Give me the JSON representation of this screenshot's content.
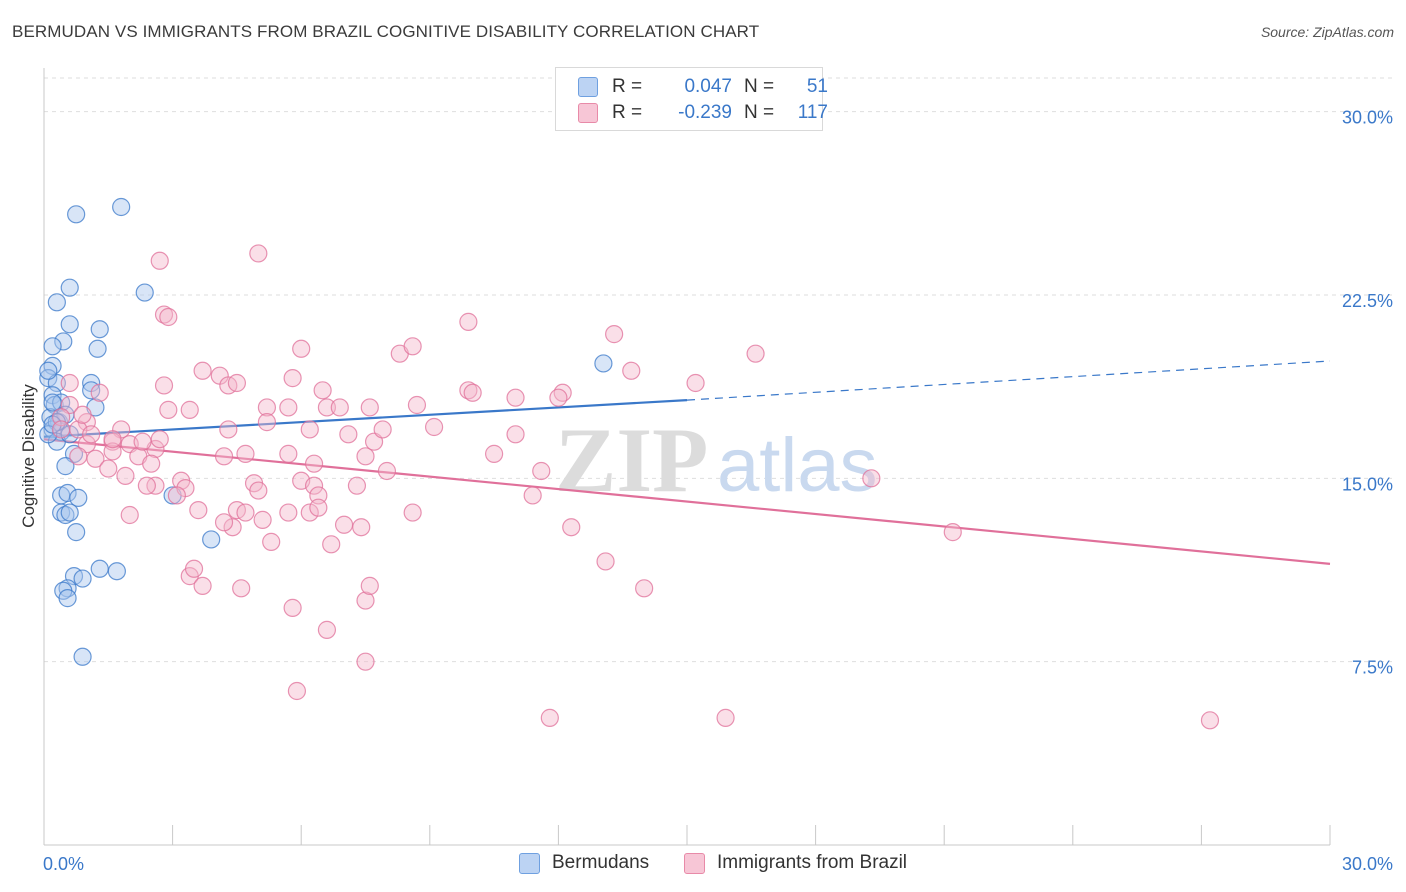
{
  "title": "BERMUDAN VS IMMIGRANTS FROM BRAZIL COGNITIVE DISABILITY CORRELATION CHART",
  "source": "Source: ZipAtlas.com",
  "watermark": {
    "zip": "ZIP",
    "atlas": "atlas"
  },
  "legend": [
    {
      "r_label": "R =",
      "r_value": "0.047",
      "n_label": "N =",
      "n_value": "51",
      "color": "#6fa0e0",
      "fill": "#bcd3f3"
    },
    {
      "r_label": "R =",
      "r_value": "-0.239",
      "n_label": "N =",
      "n_value": "117",
      "color": "#e88aa8",
      "fill": "#f7c6d6"
    }
  ],
  "bottom_legend": {
    "bermudans": "Bermudans",
    "brazil": "Immigrants from Brazil"
  },
  "chart_data": {
    "type": "scatter",
    "title": "BERMUDAN VS IMMIGRANTS FROM BRAZIL COGNITIVE DISABILITY CORRELATION CHART",
    "xlabel": "",
    "ylabel": "Cognitive Disability",
    "xlim": [
      0,
      30
    ],
    "ylim": [
      0,
      31.5
    ],
    "x_tick_labels": [
      "0.0%",
      "30.0%"
    ],
    "y_ticks": [
      7.5,
      15.0,
      22.5,
      30.0
    ],
    "y_tick_labels": [
      "7.5%",
      "15.0%",
      "22.5%",
      "30.0%"
    ],
    "grid": "horizontal dashed",
    "legend_position": "top-center",
    "series": [
      {
        "name": "Bermudans",
        "color": "#3a78c9",
        "fill": "#a9c6ee",
        "r": 0.047,
        "n": 51,
        "trend": {
          "x_start": 0,
          "y_start": 16.7,
          "x_end": 15,
          "y_end": 18.2,
          "x_dashed_end": 30,
          "y_dashed_end": 19.8
        },
        "points": [
          [
            0.2,
            19.6
          ],
          [
            0.1,
            19.1
          ],
          [
            0.3,
            18.9
          ],
          [
            0.2,
            18.4
          ],
          [
            0.25,
            18.0
          ],
          [
            0.4,
            18.1
          ],
          [
            0.15,
            17.5
          ],
          [
            0.35,
            17.3
          ],
          [
            0.2,
            17.0
          ],
          [
            0.4,
            16.9
          ],
          [
            0.3,
            16.5
          ],
          [
            0.5,
            17.6
          ],
          [
            0.6,
            16.8
          ],
          [
            0.7,
            16.0
          ],
          [
            0.5,
            15.5
          ],
          [
            0.4,
            14.3
          ],
          [
            0.55,
            14.4
          ],
          [
            0.8,
            14.2
          ],
          [
            0.4,
            13.6
          ],
          [
            0.5,
            13.5
          ],
          [
            0.6,
            13.6
          ],
          [
            0.75,
            12.8
          ],
          [
            0.7,
            11.0
          ],
          [
            0.55,
            10.5
          ],
          [
            0.45,
            10.4
          ],
          [
            0.55,
            10.1
          ],
          [
            0.9,
            10.9
          ],
          [
            1.3,
            11.3
          ],
          [
            1.7,
            11.2
          ],
          [
            0.9,
            7.7
          ],
          [
            0.75,
            25.8
          ],
          [
            1.8,
            26.1
          ],
          [
            0.6,
            22.8
          ],
          [
            0.3,
            22.2
          ],
          [
            2.35,
            22.6
          ],
          [
            0.6,
            21.3
          ],
          [
            1.3,
            21.1
          ],
          [
            0.45,
            20.6
          ],
          [
            0.2,
            20.4
          ],
          [
            1.25,
            20.3
          ],
          [
            1.1,
            18.9
          ],
          [
            1.1,
            18.6
          ],
          [
            1.2,
            17.9
          ],
          [
            0.1,
            19.4
          ],
          [
            0.3,
            17.3
          ],
          [
            0.1,
            16.8
          ],
          [
            0.2,
            17.2
          ],
          [
            3.0,
            14.3
          ],
          [
            3.9,
            12.5
          ],
          [
            13.05,
            19.7
          ],
          [
            0.2,
            18.1
          ]
        ]
      },
      {
        "name": "Immigrants from Brazil",
        "color": "#e0709a",
        "fill": "#f5b9cd",
        "r": -0.239,
        "n": 117,
        "trend": {
          "x_start": 0,
          "y_start": 16.6,
          "x_end": 30,
          "y_end": 11.5
        },
        "points": [
          [
            0.6,
            18.9
          ],
          [
            1.3,
            18.5
          ],
          [
            0.6,
            18.0
          ],
          [
            0.4,
            17.5
          ],
          [
            1.0,
            17.3
          ],
          [
            0.8,
            17.0
          ],
          [
            1.8,
            17.0
          ],
          [
            1.0,
            16.4
          ],
          [
            1.6,
            16.5
          ],
          [
            2.0,
            16.4
          ],
          [
            0.8,
            15.9
          ],
          [
            1.2,
            15.8
          ],
          [
            1.5,
            15.4
          ],
          [
            2.6,
            16.2
          ],
          [
            2.2,
            15.9
          ],
          [
            2.5,
            15.6
          ],
          [
            1.9,
            15.1
          ],
          [
            2.6,
            14.7
          ],
          [
            2.4,
            14.7
          ],
          [
            3.2,
            14.9
          ],
          [
            3.3,
            14.6
          ],
          [
            3.1,
            14.3
          ],
          [
            2.0,
            13.5
          ],
          [
            3.6,
            13.7
          ],
          [
            4.5,
            13.7
          ],
          [
            4.4,
            13.0
          ],
          [
            4.2,
            13.2
          ],
          [
            3.4,
            11.0
          ],
          [
            3.5,
            11.3
          ],
          [
            3.7,
            10.6
          ],
          [
            4.6,
            10.5
          ],
          [
            2.8,
            21.7
          ],
          [
            2.7,
            23.9
          ],
          [
            2.9,
            21.6
          ],
          [
            5.0,
            24.2
          ],
          [
            3.7,
            19.4
          ],
          [
            4.1,
            19.2
          ],
          [
            4.3,
            18.8
          ],
          [
            2.8,
            18.8
          ],
          [
            4.5,
            18.9
          ],
          [
            2.9,
            17.8
          ],
          [
            3.4,
            17.8
          ],
          [
            4.3,
            17.0
          ],
          [
            5.2,
            17.9
          ],
          [
            5.8,
            19.1
          ],
          [
            5.7,
            17.9
          ],
          [
            5.2,
            17.3
          ],
          [
            4.7,
            16.0
          ],
          [
            4.2,
            15.9
          ],
          [
            5.7,
            16.0
          ],
          [
            4.9,
            14.8
          ],
          [
            5.0,
            14.5
          ],
          [
            4.7,
            13.6
          ],
          [
            5.1,
            13.3
          ],
          [
            5.3,
            12.4
          ],
          [
            5.7,
            13.6
          ],
          [
            6.0,
            14.9
          ],
          [
            6.3,
            14.7
          ],
          [
            6.2,
            13.6
          ],
          [
            6.0,
            20.3
          ],
          [
            6.5,
            18.6
          ],
          [
            6.6,
            17.9
          ],
          [
            6.2,
            17.0
          ],
          [
            6.3,
            15.6
          ],
          [
            6.4,
            14.3
          ],
          [
            6.9,
            17.9
          ],
          [
            7.1,
            16.8
          ],
          [
            6.7,
            12.3
          ],
          [
            6.4,
            13.8
          ],
          [
            7.0,
            13.1
          ],
          [
            7.3,
            14.7
          ],
          [
            7.4,
            13.0
          ],
          [
            7.5,
            15.9
          ],
          [
            7.7,
            16.5
          ],
          [
            7.6,
            17.9
          ],
          [
            7.9,
            17.0
          ],
          [
            8.0,
            15.3
          ],
          [
            8.3,
            20.1
          ],
          [
            8.6,
            20.4
          ],
          [
            8.7,
            18.0
          ],
          [
            9.1,
            17.1
          ],
          [
            8.6,
            13.6
          ],
          [
            9.9,
            21.4
          ],
          [
            9.9,
            18.6
          ],
          [
            10.0,
            18.5
          ],
          [
            10.5,
            16.0
          ],
          [
            11.0,
            18.3
          ],
          [
            11.0,
            16.8
          ],
          [
            11.6,
            15.3
          ],
          [
            11.4,
            14.3
          ],
          [
            12.1,
            18.5
          ],
          [
            12.0,
            18.3
          ],
          [
            12.3,
            13.0
          ],
          [
            13.1,
            11.6
          ],
          [
            13.3,
            20.9
          ],
          [
            13.7,
            19.4
          ],
          [
            14.0,
            10.5
          ],
          [
            15.2,
            18.9
          ],
          [
            16.6,
            20.1
          ],
          [
            19.3,
            15.0
          ],
          [
            21.2,
            12.8
          ],
          [
            5.9,
            6.3
          ],
          [
            6.6,
            8.8
          ],
          [
            7.5,
            7.5
          ],
          [
            7.5,
            10.0
          ],
          [
            7.6,
            10.6
          ],
          [
            5.8,
            9.7
          ],
          [
            11.8,
            5.2
          ],
          [
            15.9,
            5.2
          ],
          [
            27.2,
            5.1
          ],
          [
            0.9,
            17.6
          ],
          [
            1.6,
            16.1
          ],
          [
            2.3,
            16.5
          ],
          [
            1.1,
            16.8
          ],
          [
            0.4,
            17.0
          ],
          [
            2.7,
            16.6
          ],
          [
            1.6,
            16.6
          ]
        ]
      }
    ]
  }
}
